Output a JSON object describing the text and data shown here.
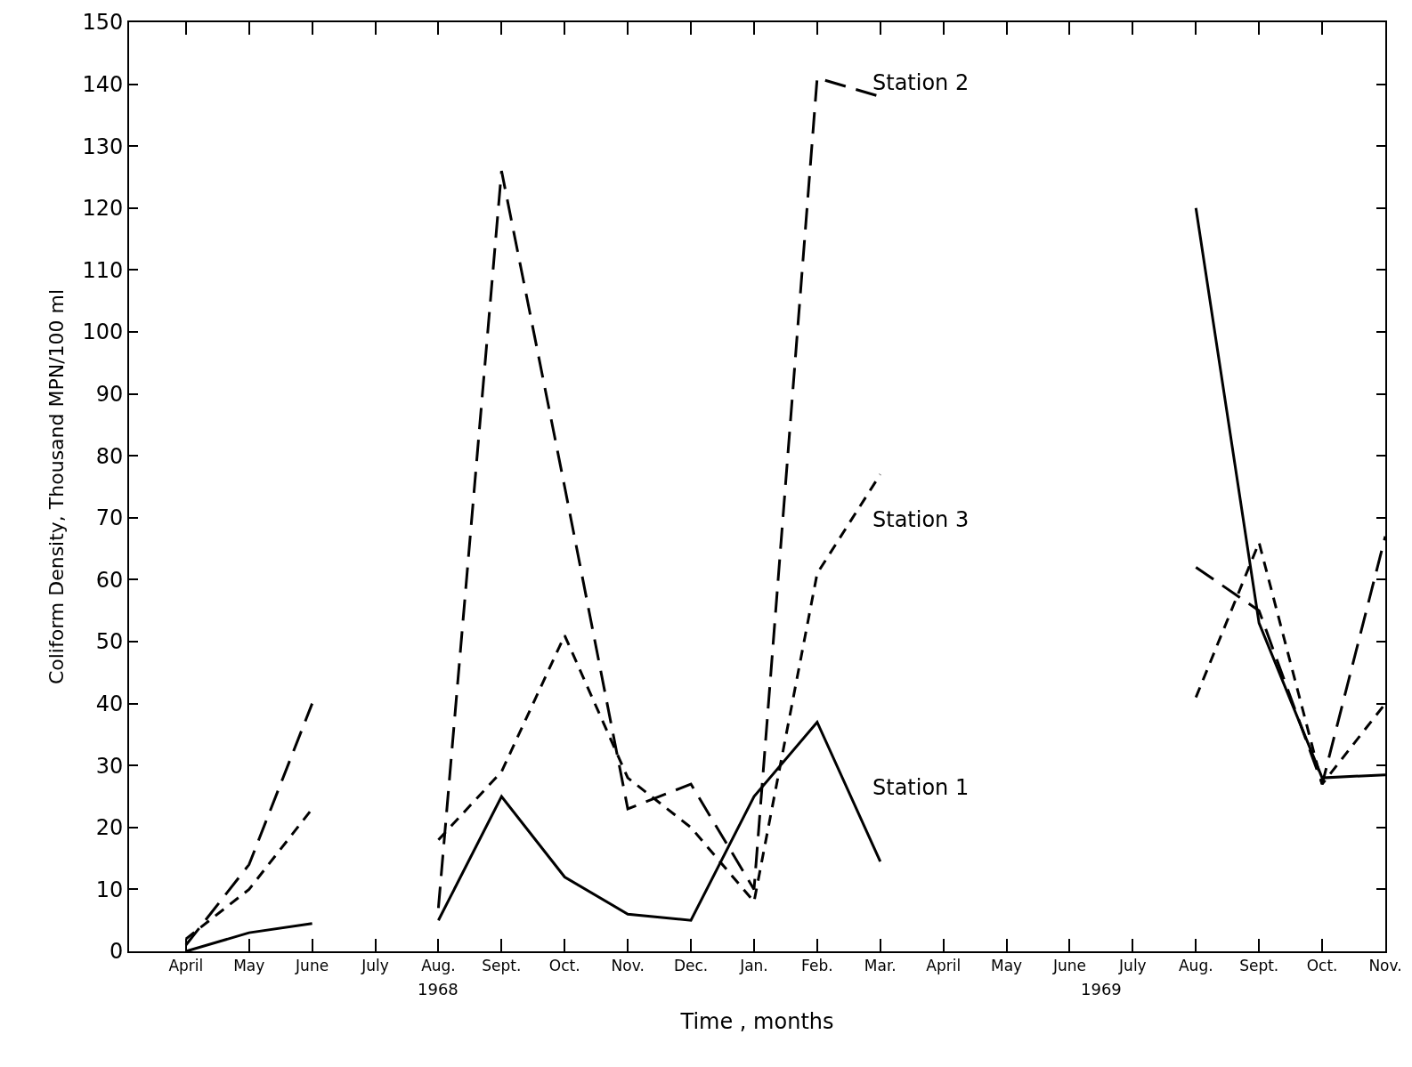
{
  "chart_data": {
    "type": "line",
    "xlabel": "Time , months",
    "ylabel": "Coliform Density, Thousand MPN/100 ml",
    "categories": [
      "April",
      "May",
      "June",
      "July",
      "Aug.",
      "Sept.",
      "Oct.",
      "Nov.",
      "Dec.",
      "Jan.",
      "Feb.",
      "Mar.",
      "April",
      "May",
      "June",
      "July",
      "Aug.",
      "Sept.",
      "Oct.",
      "Nov."
    ],
    "series": [
      {
        "name": "Station 1",
        "color": "#000000",
        "line_style": "solid",
        "values": [
          0,
          3,
          4.5,
          null,
          5,
          25,
          12,
          6,
          5,
          25,
          37,
          14.5,
          null,
          null,
          null,
          null,
          120,
          53,
          28,
          28.5
        ]
      },
      {
        "name": "Station 2",
        "color": "#000000",
        "line_style": "dashed",
        "values": [
          1,
          14,
          40,
          null,
          7,
          126,
          75,
          23,
          27,
          10,
          141,
          138,
          null,
          null,
          null,
          null,
          62,
          55,
          27,
          67
        ]
      },
      {
        "name": "Station 3",
        "color": "#000000",
        "line_style": "dashed",
        "values": [
          2,
          10,
          23,
          null,
          18,
          29,
          51,
          28,
          20,
          8,
          61,
          77,
          null,
          null,
          null,
          null,
          41,
          66,
          27,
          40
        ]
      }
    ],
    "annotations": [
      "1968",
      "1969"
    ],
    "ylim": [
      0,
      150
    ],
    "yticks": [
      0,
      10,
      20,
      30,
      40,
      50,
      60,
      70,
      80,
      90,
      100,
      110,
      120,
      130,
      140,
      150
    ],
    "marker": "none"
  }
}
